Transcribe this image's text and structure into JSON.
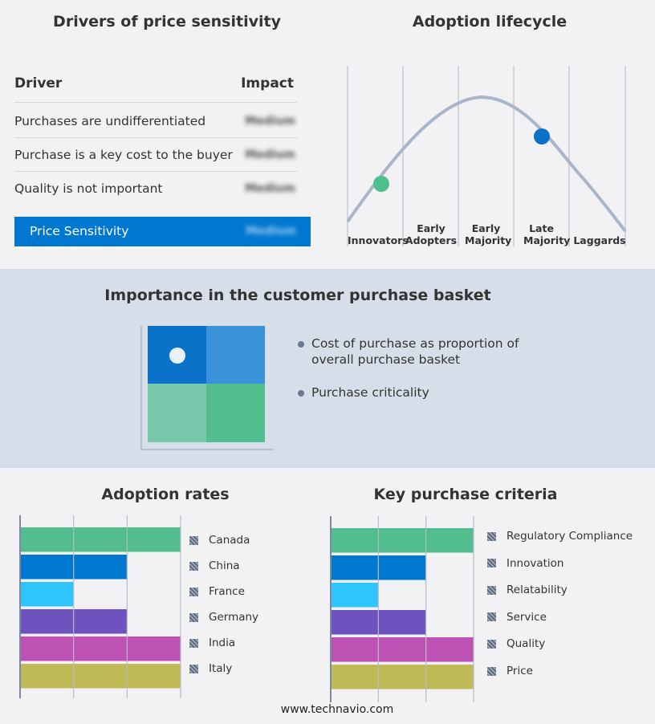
{
  "drivers": {
    "title": "Drivers of price sensitivity",
    "col_driver": "Driver",
    "col_impact": "Impact",
    "rows": [
      {
        "driver": "Purchases are undifferentiated",
        "impact": "Medium"
      },
      {
        "driver": "Purchase is a key cost to the buyer",
        "impact": "Medium"
      },
      {
        "driver": "Quality is not important",
        "impact": "Medium"
      }
    ],
    "summary": {
      "label": "Price Sensitivity",
      "impact": "Medium"
    }
  },
  "lifecycle": {
    "title": "Adoption lifecycle",
    "stages": [
      "Innovators",
      "Early Adopters",
      "Early Majority",
      "Late Majority",
      "Laggards"
    ],
    "markers": [
      {
        "stage": "Innovators",
        "color": "#4fc08d"
      },
      {
        "stage": "Late Majority",
        "color": "#0a72c8"
      }
    ]
  },
  "basket": {
    "title": "Importance in the customer purchase basket",
    "bullets": [
      "Cost of purchase as proportion of overall purchase basket",
      "Purchase criticality"
    ],
    "quadrant_colors": [
      "#0a72c8",
      "#3a93d8",
      "#78c8ab",
      "#52bd8f"
    ],
    "marker_quadrant": "top-left"
  },
  "chart_data": [
    {
      "type": "bar",
      "orientation": "horizontal",
      "title": "Adoption rates",
      "categories": [
        "Canada",
        "China",
        "France",
        "Germany",
        "India",
        "Italy"
      ],
      "values": [
        3,
        2,
        1,
        2,
        3,
        3
      ],
      "xlim": [
        0,
        3
      ],
      "grid": true,
      "legend": "right",
      "colors": [
        "#52bd8f",
        "#0078d0",
        "#2ec4fc",
        "#6e52bd",
        "#be52b4",
        "#bfba55"
      ]
    },
    {
      "type": "bar",
      "orientation": "horizontal",
      "title": "Key purchase criteria",
      "categories": [
        "Regulatory Compliance",
        "Innovation",
        "Relatability",
        "Service",
        "Quality",
        "Price"
      ],
      "values": [
        3,
        2,
        1,
        2,
        3,
        3
      ],
      "xlim": [
        0,
        3
      ],
      "grid": true,
      "legend": "right",
      "colors": [
        "#52bd8f",
        "#0078d0",
        "#2ec4fc",
        "#6e52bd",
        "#be52b4",
        "#bfba55"
      ]
    }
  ],
  "footer": "www.technavio.com"
}
